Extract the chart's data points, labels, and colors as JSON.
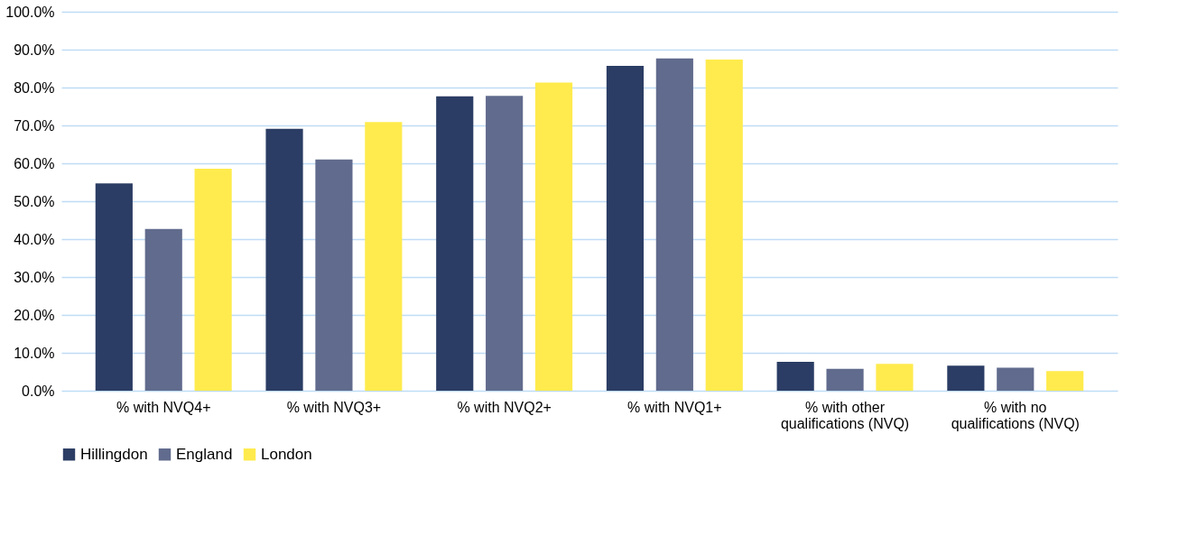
{
  "chart_data": {
    "type": "bar",
    "categories": [
      "% with NVQ4+",
      "% with NVQ3+",
      "% with NVQ2+",
      "% with NVQ1+",
      "% with other\nqualifications (NVQ)",
      "% with no\nqualifications (NVQ)"
    ],
    "series": [
      {
        "name": "Hillingdon",
        "color": "#2b3d64",
        "values": [
          54.7,
          69.1,
          77.7,
          85.7,
          7.6,
          6.6
        ]
      },
      {
        "name": "England",
        "color": "#616b8d",
        "values": [
          42.7,
          61.0,
          77.8,
          87.7,
          5.8,
          6.1
        ]
      },
      {
        "name": "London",
        "color": "#ffeb4d",
        "values": [
          58.6,
          70.9,
          81.3,
          87.4,
          7.1,
          5.2
        ]
      }
    ],
    "ylim": [
      0,
      100
    ],
    "yticks": [
      {
        "value": 0,
        "label": "0.0%"
      },
      {
        "value": 10,
        "label": "10.0%"
      },
      {
        "value": 20,
        "label": "20.0%"
      },
      {
        "value": 30,
        "label": "30.0%"
      },
      {
        "value": 40,
        "label": "40.0%"
      },
      {
        "value": 50,
        "label": "50.0%"
      },
      {
        "value": 60,
        "label": "60.0%"
      },
      {
        "value": 70,
        "label": "70.0%"
      },
      {
        "value": 80,
        "label": "80.0%"
      },
      {
        "value": 90,
        "label": "90.0%"
      },
      {
        "value": 100,
        "label": "100.0%"
      }
    ],
    "grid": "y",
    "legend": "bottom"
  }
}
